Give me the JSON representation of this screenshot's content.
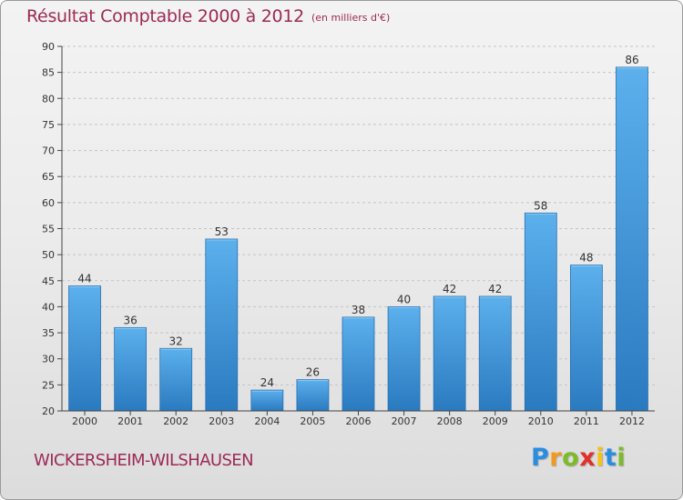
{
  "title": "Résultat Comptable 2000 à 2012",
  "subtitle": "(en milliers d'€)",
  "commune": "WICKERSHEIM-WILSHAUSEN",
  "logo": {
    "letters": [
      "P",
      "r",
      "o",
      "x",
      "i",
      "t",
      "i"
    ],
    "colors": [
      "#2a8ee0",
      "#f39a1c",
      "#7dbb2a",
      "#e0312b",
      "#f3c21c",
      "#2a8ee0",
      "#7dbb2a"
    ]
  },
  "colors": {
    "bar_top": "#5cb0ec",
    "bar_bottom": "#2a7ac0",
    "bar_edge": "#2a70b0",
    "title": "#9c2a55",
    "grid": "#c4c4c4"
  },
  "chart_data": {
    "type": "bar",
    "title": "Résultat Comptable 2000 à 2012",
    "subtitle": "(en milliers d'€)",
    "xlabel": "",
    "ylabel": "",
    "categories": [
      "2000",
      "2001",
      "2002",
      "2003",
      "2004",
      "2005",
      "2006",
      "2007",
      "2008",
      "2009",
      "2010",
      "2011",
      "2012"
    ],
    "values": [
      44,
      36,
      32,
      53,
      24,
      26,
      38,
      40,
      42,
      42,
      58,
      48,
      86
    ],
    "ylim": [
      20,
      90
    ],
    "yticks": [
      20,
      25,
      30,
      35,
      40,
      45,
      50,
      55,
      60,
      65,
      70,
      75,
      80,
      85,
      90
    ],
    "grid": "horizontal dashed"
  }
}
